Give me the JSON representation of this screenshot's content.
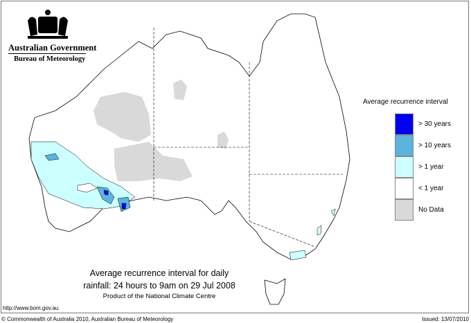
{
  "header": {
    "government": "Australian Government",
    "bureau": "Bureau of Meteorology"
  },
  "legend": {
    "title": "Average recurrence interval",
    "items": [
      {
        "label": "> 30 years",
        "color": "#0000ee"
      },
      {
        "label": "> 10 years",
        "color": "#5ab4dc"
      },
      {
        "label": "> 1 year",
        "color": "#ccffff"
      },
      {
        "label": "< 1 year",
        "color": "#ffffff"
      },
      {
        "label": "No Data",
        "color": "#d9d9d9"
      }
    ]
  },
  "title": {
    "line1": "Average recurrence interval for daily",
    "line2": "rainfall: 24 hours to 9am on 29 Jul 2008",
    "line3": "Product of the National Climate Centre"
  },
  "footer": {
    "url": "http://www.bom.gov.au",
    "copyright": "© Commonwealth of Australia 2010, Australian Bureau of Meteorology",
    "issued": "Issued: 13/07/2010"
  }
}
